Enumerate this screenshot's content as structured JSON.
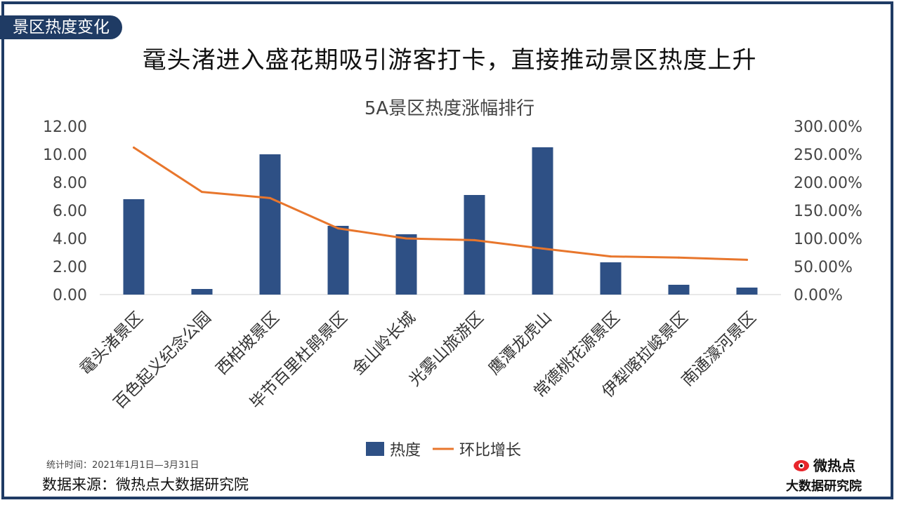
{
  "header": {
    "tag": "景区热度变化",
    "headline": "鼋头渚进入盛花期吸引游客打卡，直接推动景区热度上升"
  },
  "footer": {
    "note": "统计时间：2021年1月1日—3月31日",
    "source": "数据来源：微热点大数据研究院",
    "brand_logo_text": "微热点",
    "brand_name": "大数据研究院"
  },
  "colors": {
    "bar": "#2e5085",
    "line": "#e8762c",
    "frame": "#1f3b64"
  },
  "chart_data": {
    "type": "bar",
    "title": "5A景区热度涨幅排行",
    "categories": [
      "鼋头渚景区",
      "百色起义纪念公园",
      "西柏坡景区",
      "毕节百里杜鹃景区",
      "金山岭长城",
      "光雾山旅游区",
      "鹰潭龙虎山",
      "常德桃花源景区",
      "伊犁喀拉峻景区",
      "南通濠河景区"
    ],
    "series": [
      {
        "name": "热度",
        "type": "bar",
        "axis": "left",
        "values": [
          6.8,
          0.4,
          10.0,
          4.9,
          4.3,
          7.1,
          10.5,
          2.3,
          0.7,
          0.5
        ]
      },
      {
        "name": "环比增长",
        "type": "line",
        "axis": "right",
        "values": [
          2.62,
          1.83,
          1.72,
          1.18,
          1.0,
          0.97,
          0.82,
          0.68,
          0.66,
          0.62
        ]
      }
    ],
    "y_left": {
      "min": 0,
      "max": 12,
      "ticks": [
        "0.00",
        "2.00",
        "4.00",
        "6.00",
        "8.00",
        "10.00",
        "12.00"
      ]
    },
    "y_right": {
      "min": 0,
      "max": 3,
      "ticks": [
        "0.00%",
        "50.00%",
        "100.00%",
        "150.00%",
        "200.00%",
        "250.00%",
        "300.00%"
      ]
    },
    "grid": false,
    "legend": "bottom"
  }
}
